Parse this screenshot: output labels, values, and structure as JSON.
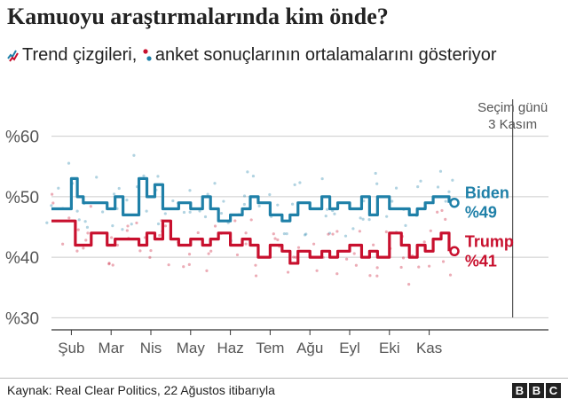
{
  "title": "Kamuoyu araştırmalarında kim önde?",
  "legend": {
    "text_1": "Trend çizgileri,",
    "text_2": "anket sonuçlarının ortalamalarını gösteriyor"
  },
  "source": "Kaynak: Real Clear Politics, 22 Ağustos itibarıyla",
  "logo": [
    "B",
    "B",
    "C"
  ],
  "colors": {
    "biden": "#1f80a8",
    "trump": "#c8102e",
    "grid": "#cccccc",
    "axis": "#333333"
  },
  "chart_data": {
    "type": "line",
    "x_categories": [
      "Şub",
      "Mar",
      "Nis",
      "May",
      "Haz",
      "Tem",
      "Ağu",
      "Eyl",
      "Eki",
      "Kas"
    ],
    "y_ticks": [
      30,
      40,
      50,
      60
    ],
    "y_tick_labels": [
      "%30",
      "%40",
      "%50",
      "%60"
    ],
    "ylim": [
      28,
      62
    ],
    "xlim": [
      0,
      12.5
    ],
    "grid": true,
    "event_line": {
      "x": 11.6,
      "label_lines": [
        "Seçim günü",
        "3 Kasım"
      ]
    },
    "series": [
      {
        "name": "Biden",
        "end_label": "%49",
        "color_key": "biden",
        "x": [
          0,
          0.3,
          0.5,
          0.65,
          0.8,
          1.0,
          1.4,
          1.6,
          1.8,
          2.0,
          2.2,
          2.4,
          2.6,
          2.8,
          3.0,
          3.2,
          3.5,
          3.8,
          4.0,
          4.2,
          4.5,
          4.8,
          5.0,
          5.2,
          5.5,
          5.8,
          6.0,
          6.2,
          6.5,
          6.8,
          7.0,
          7.2,
          7.5,
          7.8,
          8.0,
          8.2,
          8.5,
          8.8,
          9.0,
          9.2,
          9.4,
          9.6,
          9.8,
          10.0
        ],
        "values": [
          48,
          48,
          53,
          50,
          49,
          49,
          48,
          50,
          47,
          47,
          53,
          50,
          52,
          48,
          48,
          49,
          48,
          50,
          48,
          46,
          47,
          48,
          50,
          49,
          47,
          46,
          47,
          49,
          48,
          50,
          48,
          49,
          48,
          50,
          47,
          50,
          48,
          48,
          47,
          48,
          49,
          50,
          50,
          49
        ]
      },
      {
        "name": "Trump",
        "end_label": "%41",
        "color_key": "trump",
        "x": [
          0,
          0.3,
          0.6,
          0.8,
          1.0,
          1.4,
          1.6,
          1.8,
          2.0,
          2.2,
          2.4,
          2.6,
          2.8,
          3.0,
          3.2,
          3.5,
          3.8,
          4.0,
          4.2,
          4.5,
          4.8,
          5.0,
          5.2,
          5.5,
          5.8,
          6.0,
          6.2,
          6.5,
          6.8,
          7.0,
          7.2,
          7.5,
          7.8,
          8.0,
          8.2,
          8.5,
          8.8,
          9.0,
          9.2,
          9.4,
          9.6,
          9.8,
          10.0
        ],
        "values": [
          46,
          46,
          42,
          42,
          44,
          42,
          43,
          43,
          43,
          42,
          44,
          43,
          46,
          43,
          42,
          43,
          42,
          43,
          44,
          42,
          43,
          42,
          40,
          42,
          41,
          39,
          41,
          40,
          41,
          40,
          41,
          42,
          40,
          41,
          40,
          44,
          42,
          40,
          42,
          41,
          43,
          44,
          41
        ]
      }
    ]
  }
}
